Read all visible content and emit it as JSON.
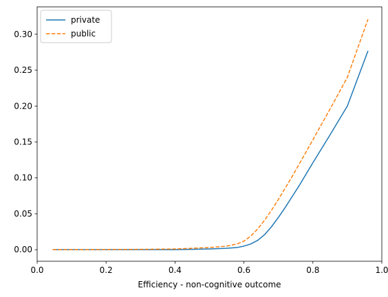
{
  "chart_data": {
    "type": "line",
    "title": "",
    "xlabel": "Efficiency - non-cognitive outcome",
    "ylabel": "",
    "xlim": [
      0.0,
      1.0
    ],
    "ylim": [
      -0.0161,
      0.3381
    ],
    "grid": false,
    "legend_position": "top-left",
    "x_ticks": [
      "0.0",
      "0.2",
      "0.4",
      "0.6",
      "0.8",
      "1.0"
    ],
    "y_ticks": [
      "0.00",
      "0.05",
      "0.10",
      "0.15",
      "0.20",
      "0.25",
      "0.30"
    ],
    "x": [
      0.045,
      0.1,
      0.2,
      0.3,
      0.4,
      0.45,
      0.5,
      0.55,
      0.58,
      0.6,
      0.62,
      0.64,
      0.66,
      0.68,
      0.7,
      0.72,
      0.74,
      0.76,
      0.8,
      0.85,
      0.9,
      0.96
    ],
    "series": [
      {
        "name": "private",
        "color": "#1f77b4",
        "style": "solid",
        "values": [
          0.0,
          0.0,
          0.0,
          0.0,
          0.0,
          0.0005,
          0.001,
          0.002,
          0.003,
          0.005,
          0.008,
          0.013,
          0.021,
          0.032,
          0.045,
          0.059,
          0.074,
          0.089,
          0.121,
          0.16,
          0.2,
          0.277
        ]
      },
      {
        "name": "public",
        "color": "#ff7f0e",
        "style": "dashed",
        "values": [
          0.0,
          0.0,
          0.0002,
          0.0005,
          0.001,
          0.002,
          0.003,
          0.005,
          0.008,
          0.012,
          0.019,
          0.029,
          0.041,
          0.055,
          0.07,
          0.086,
          0.102,
          0.119,
          0.153,
          0.196,
          0.24,
          0.321
        ]
      }
    ]
  }
}
